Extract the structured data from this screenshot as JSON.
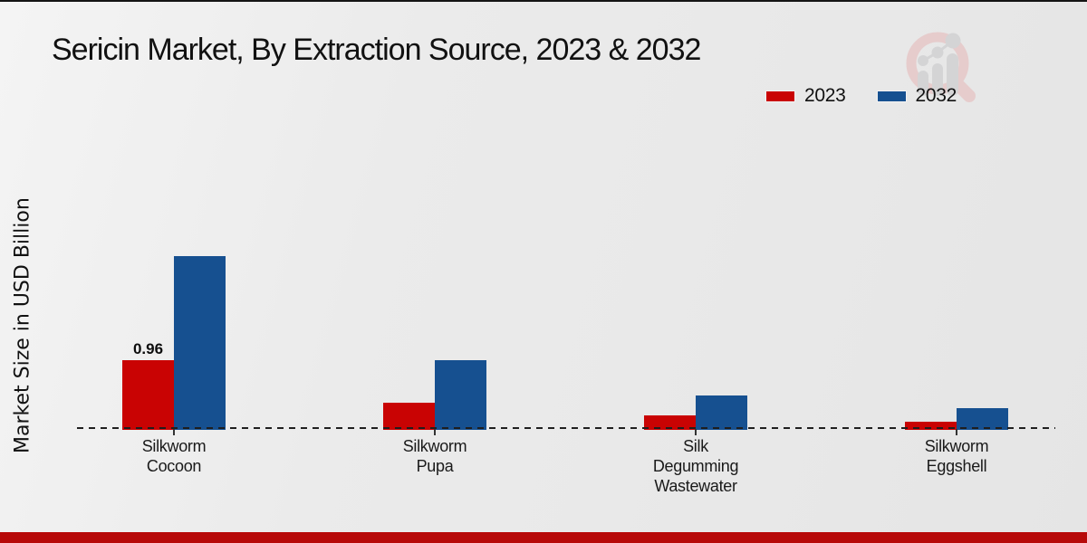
{
  "page": {
    "title": "Sericin Market, By Extraction Source, 2023 & 2032",
    "y_axis_label": "Market Size in USD Billion"
  },
  "legend": [
    {
      "label": "2023",
      "color": "#c90303"
    },
    {
      "label": "2032",
      "color": "#165090"
    }
  ],
  "chart_data": {
    "type": "bar",
    "title": "Sericin Market, By Extraction Source, 2023 & 2032",
    "xlabel": "",
    "ylabel": "Market Size in USD Billion",
    "categories": [
      "Silkworm Cocoon",
      "Silkworm Pupa",
      "Silk Degumming Wastewater",
      "Silkworm Eggshell"
    ],
    "category_lines": [
      [
        "Silkworm",
        "Cocoon"
      ],
      [
        "Silkworm",
        "Pupa"
      ],
      [
        "Silk",
        "Degumming",
        "Wastewater"
      ],
      [
        "Silkworm",
        "Eggshell"
      ]
    ],
    "series": [
      {
        "name": "2023",
        "color": "#c90303",
        "values": [
          0.96,
          0.37,
          0.19,
          0.1
        ],
        "data_labels": [
          "0.96",
          null,
          null,
          null
        ]
      },
      {
        "name": "2032",
        "color": "#165090",
        "values": [
          2.41,
          0.96,
          0.47,
          0.29
        ],
        "data_labels": [
          null,
          null,
          null,
          null
        ]
      }
    ],
    "ylim": [
      0,
      2.6
    ],
    "grid": false,
    "axis_style": "dashed black baseline only, no y-axis ticks",
    "legend_position": "top-right"
  },
  "watermark": {
    "icon": "magnifier-bar-chart-logo",
    "ring_color": "#e6caca",
    "bar_color": "#d2d2d4"
  },
  "footer": {
    "accent_color": "#b70909"
  }
}
